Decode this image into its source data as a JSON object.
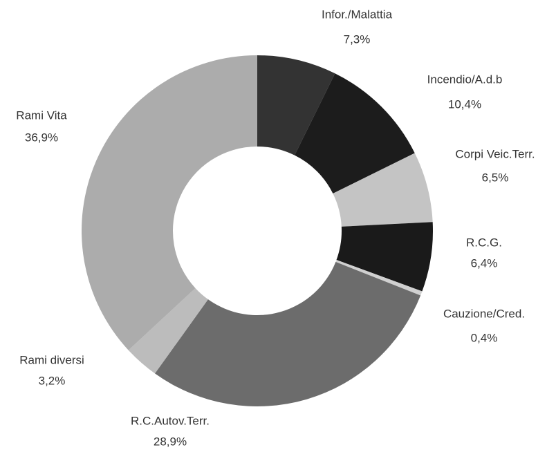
{
  "chart_data": {
    "type": "donut",
    "categories": [
      "Infor./Malattia",
      "Incendio/A.d.b",
      "Corpi Veic.Terr.",
      "R.C.G.",
      "Cauzione/Cred.",
      "R.C.Autov.Terr.",
      "Rami diversi",
      "Rami Vita"
    ],
    "values": [
      7.3,
      10.4,
      6.5,
      6.4,
      0.4,
      28.9,
      3.2,
      36.9
    ],
    "value_labels": [
      "7,3%",
      "10,4%",
      "6,5%",
      "6,4%",
      "0,4%",
      "28,9%",
      "3,2%",
      "36,9%"
    ],
    "colors": [
      "#333333",
      "#1c1c1c",
      "#c4c4c4",
      "#1a1a1a",
      "#d0d0d0",
      "#6c6c6c",
      "#bcbcbc",
      "#acacac"
    ]
  }
}
